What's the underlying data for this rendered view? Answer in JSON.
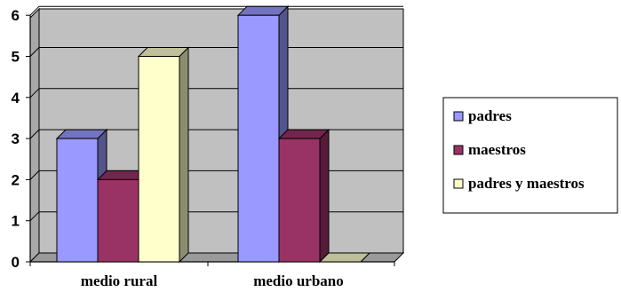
{
  "chart_data": {
    "type": "bar",
    "style": "3d-clustered-column",
    "categories": [
      "medio rural",
      "medio urbano"
    ],
    "series": [
      {
        "name": "padres",
        "values": [
          3,
          6
        ],
        "color": "#9999ff"
      },
      {
        "name": "maestros",
        "values": [
          2,
          3
        ],
        "color": "#993366"
      },
      {
        "name": "padres y maestros",
        "values": [
          5,
          0
        ],
        "color": "#ffffcc"
      }
    ],
    "ylim": [
      0,
      6
    ],
    "yticks": [
      "0",
      "1",
      "2",
      "3",
      "4",
      "5",
      "6"
    ],
    "grid": true,
    "wall_color": "#c0c0c0",
    "legend_position": "right"
  }
}
